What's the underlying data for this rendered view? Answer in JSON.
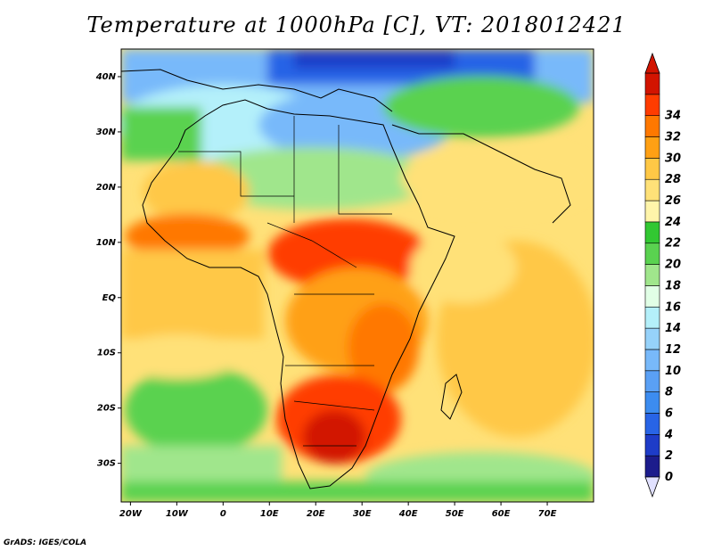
{
  "title": "Temperature at 1000hPa [C], VT: 2018012421",
  "credit": "GrADS: IGES/COLA",
  "map": {
    "lon_range": [
      -22,
      80
    ],
    "lat_range": [
      -37,
      45
    ],
    "lon_ticks": [
      {
        "value": -20,
        "label": "20W"
      },
      {
        "value": -10,
        "label": "10W"
      },
      {
        "value": 0,
        "label": "0"
      },
      {
        "value": 10,
        "label": "10E"
      },
      {
        "value": 20,
        "label": "20E"
      },
      {
        "value": 30,
        "label": "30E"
      },
      {
        "value": 40,
        "label": "40E"
      },
      {
        "value": 50,
        "label": "50E"
      },
      {
        "value": 60,
        "label": "60E"
      },
      {
        "value": 70,
        "label": "70E"
      }
    ],
    "lat_ticks": [
      {
        "value": 40,
        "label": "40N"
      },
      {
        "value": 30,
        "label": "30N"
      },
      {
        "value": 20,
        "label": "20N"
      },
      {
        "value": 10,
        "label": "10N"
      },
      {
        "value": 0,
        "label": "EQ"
      },
      {
        "value": -10,
        "label": "10S"
      },
      {
        "value": -20,
        "label": "20S"
      },
      {
        "value": -30,
        "label": "30S"
      }
    ]
  },
  "colorbar": {
    "levels": [
      "0",
      "2",
      "4",
      "6",
      "8",
      "10",
      "12",
      "14",
      "16",
      "18",
      "20",
      "22",
      "24",
      "26",
      "28",
      "30",
      "32",
      "34"
    ],
    "colors": [
      "#1c1c8c",
      "#1e3cc8",
      "#2864e6",
      "#3c8cf0",
      "#5aa0f5",
      "#78b9fa",
      "#96d2fa",
      "#b4f0fa",
      "#e1ffe6",
      "#a0e68c",
      "#5ad250",
      "#32c832",
      "#fff5aa",
      "#ffe178",
      "#ffc846",
      "#ffa014",
      "#ff7800",
      "#ff3c00",
      "#d21400"
    ],
    "under_color": "#e1e1ff",
    "over_color": "#d21400"
  }
}
